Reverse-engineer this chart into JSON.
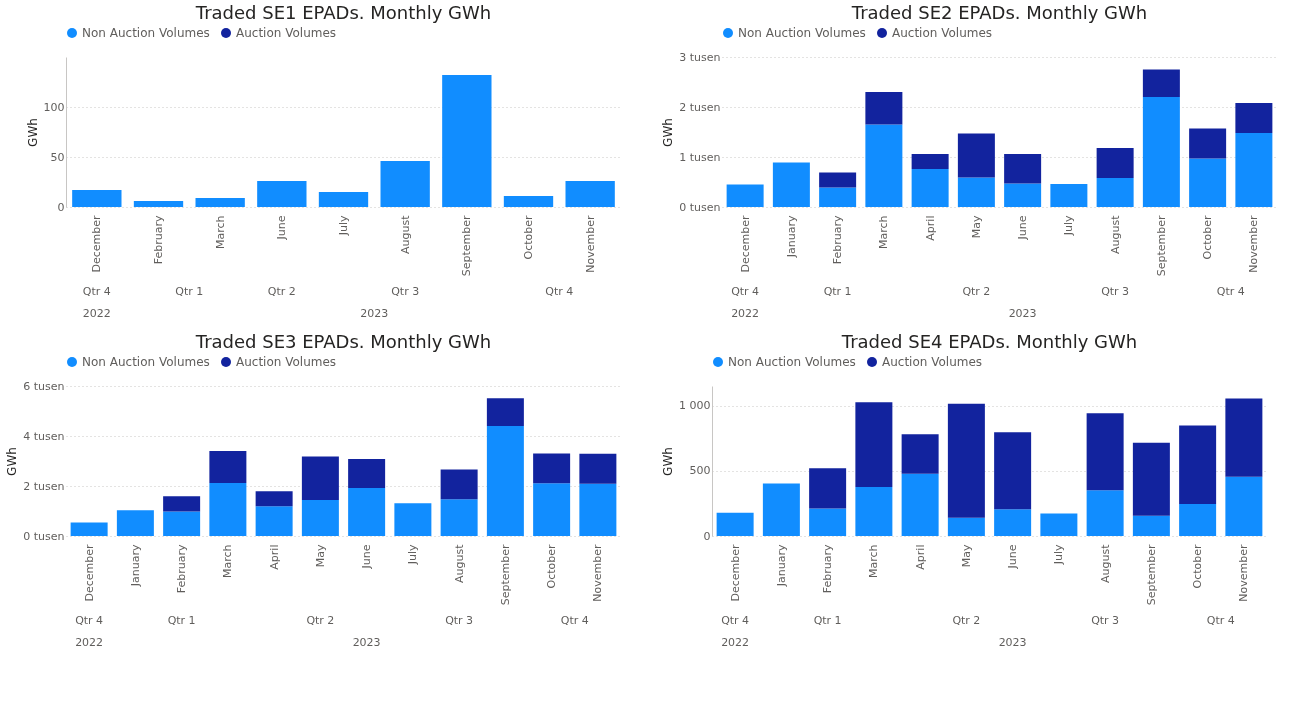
{
  "chart_data": [
    {
      "type": "bar",
      "title": "Traded SE1 EPADs. Monthly GWh",
      "ylabel": "GWh",
      "stacked": true,
      "legend": "top",
      "grid": "y",
      "categories": [
        "December",
        "February",
        "March",
        "June",
        "July",
        "August",
        "September",
        "October",
        "November"
      ],
      "series": [
        {
          "name": "Non Auction Volumes",
          "color": "#118dff",
          "values": [
            17,
            6,
            9,
            26,
            15,
            46,
            132,
            11,
            26
          ]
        },
        {
          "name": "Auction Volumes",
          "color": "#12239e",
          "values": [
            null,
            null,
            null,
            null,
            null,
            null,
            null,
            null,
            null
          ]
        }
      ],
      "ylim": [
        0,
        150
      ],
      "yticks": [
        0,
        50,
        100
      ],
      "annotations": [
        "Qtr 4",
        "Qtr 1",
        "Qtr 2",
        "Qtr 3",
        "Qtr 4",
        "2022",
        "2023"
      ]
    },
    {
      "type": "bar",
      "title": "Traded SE2 EPADs. Monthly GWh",
      "ylabel": "GWh",
      "stacked": true,
      "legend": "top",
      "grid": "y",
      "categories": [
        "December",
        "January",
        "February",
        "March",
        "April",
        "May",
        "June",
        "July",
        "August",
        "September",
        "October",
        "November"
      ],
      "series": [
        {
          "name": "Non Auction Volumes",
          "color": "#118dff",
          "values": [
            0.45,
            0.89,
            0.39,
            1.65,
            0.76,
            0.59,
            0.47,
            0.46,
            0.58,
            2.2,
            0.97,
            1.48
          ]
        },
        {
          "name": "Auction Volumes",
          "color": "#12239e",
          "values": [
            null,
            null,
            0.3,
            0.65,
            0.3,
            0.88,
            0.59,
            null,
            0.6,
            0.55,
            0.6,
            0.6
          ]
        }
      ],
      "ylim": [
        0,
        3
      ],
      "yticks": [
        {
          "value": 0,
          "label": "0 tusen"
        },
        {
          "value": 1,
          "label": "1 tusen"
        },
        {
          "value": 2,
          "label": "2 tusen"
        },
        {
          "value": 3,
          "label": "3 tusen"
        }
      ],
      "annotations": [
        "Qtr 4",
        "Qtr 1",
        "Qtr 2",
        "Qtr 3",
        "Qtr 4",
        "2022",
        "2023"
      ]
    },
    {
      "type": "bar",
      "title": "Traded SE3 EPADs. Monthly GWh",
      "ylabel": "GWh",
      "stacked": true,
      "legend": "top",
      "grid": "y",
      "categories": [
        "December",
        "January",
        "February",
        "March",
        "April",
        "May",
        "June",
        "July",
        "August",
        "September",
        "October",
        "November"
      ],
      "series": [
        {
          "name": "Non Auction Volumes",
          "color": "#118dff",
          "values": [
            0.54,
            1.03,
            0.98,
            2.12,
            1.19,
            1.44,
            1.92,
            1.31,
            1.47,
            4.4,
            2.11,
            2.09
          ]
        },
        {
          "name": "Auction Volumes",
          "color": "#12239e",
          "values": [
            null,
            null,
            0.61,
            1.28,
            0.6,
            1.74,
            1.16,
            null,
            1.19,
            1.11,
            1.19,
            1.2
          ]
        }
      ],
      "ylim": [
        0,
        6
      ],
      "yticks": [
        {
          "value": 0,
          "label": "0 tusen"
        },
        {
          "value": 2,
          "label": "2 tusen"
        },
        {
          "value": 4,
          "label": "4 tusen"
        },
        {
          "value": 6,
          "label": "6 tusen"
        }
      ],
      "annotations": [
        "Qtr 4",
        "Qtr 1",
        "Qtr 2",
        "Qtr 3",
        "Qtr 4",
        "2022",
        "2023"
      ]
    },
    {
      "type": "bar",
      "title": "Traded SE4 EPADs. Monthly GWh",
      "ylabel": "GWh",
      "stacked": true,
      "legend": "top",
      "grid": "y",
      "categories": [
        "December",
        "January",
        "February",
        "March",
        "April",
        "May",
        "June",
        "July",
        "August",
        "September",
        "October",
        "November"
      ],
      "series": [
        {
          "name": "Non Auction Volumes",
          "color": "#118dff",
          "values": [
            179,
            402,
            211,
            376,
            477,
            139,
            205,
            173,
            350,
            156,
            246,
            454
          ]
        },
        {
          "name": "Auction Volumes",
          "color": "#12239e",
          "values": [
            null,
            null,
            309,
            650,
            303,
            875,
            590,
            null,
            592,
            558,
            601,
            601
          ]
        }
      ],
      "ylim": [
        0,
        1150
      ],
      "yticks": [
        0,
        500,
        {
          "value": 1000,
          "label": "1 000"
        }
      ],
      "annotations": [
        "Qtr 4",
        "Qtr 1",
        "Qtr 2",
        "Qtr 3",
        "Qtr 4",
        "2022",
        "2023"
      ]
    }
  ]
}
